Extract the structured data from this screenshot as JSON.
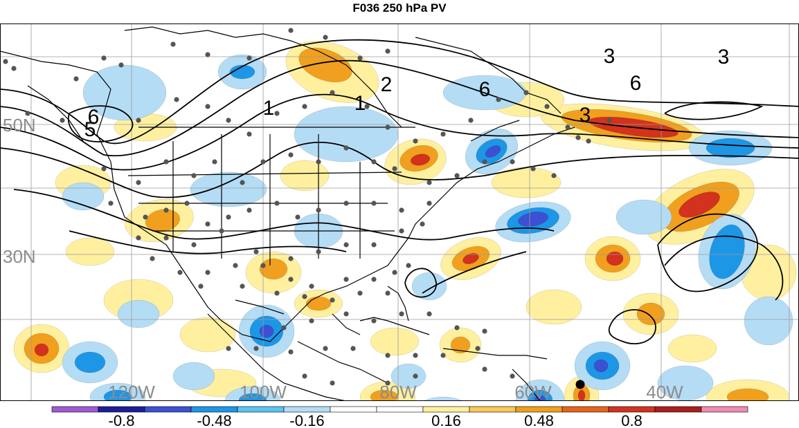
{
  "title": "F036 250 hPa PV",
  "latitude_labels": [
    "50N",
    "30N"
  ],
  "longitude_labels": [
    "120W",
    "100W",
    "80W",
    "60W",
    "40W"
  ],
  "contour_labels": [
    "3",
    "3",
    "6",
    "6",
    "2",
    "1",
    "3",
    "1",
    "6",
    "5"
  ],
  "colorbar": {
    "colors": [
      "#a05ad2",
      "#1e1e96",
      "#3c50d2",
      "#1e96e6",
      "#5fc3f0",
      "#b4dcf5",
      "#ffffff",
      "#ffffff",
      "#fff0a0",
      "#fac85a",
      "#f0a01e",
      "#e6641e",
      "#d2321e",
      "#aa1e1e",
      "#f08cb4"
    ],
    "tick_labels": [
      "-0.8",
      "-0.48",
      "-0.16",
      "0.16",
      "0.48",
      "0.8"
    ]
  },
  "colors": {
    "positive_strong": "#d2321e",
    "positive_mid": "#f0a01e",
    "positive_weak": "#fff0a0",
    "negative_strong": "#3c50d2",
    "negative_mid": "#1e96e6",
    "negative_weak": "#b4dcf5",
    "station_dot": "#555555",
    "grid_label": "#8c8c8c"
  }
}
